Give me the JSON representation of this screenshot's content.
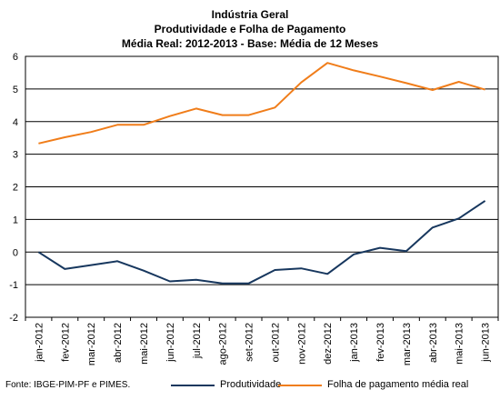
{
  "chart_data": {
    "type": "line",
    "title": "Indústria Geral",
    "subtitle": "Produtividade e Folha de Pagamento",
    "subtitle2": "Média Real: 2012-2013 - Base: Média de 12 Meses",
    "categories": [
      "jan-2012",
      "fev-2012",
      "mar-2012",
      "abr-2012",
      "mai-2012",
      "jun-2012",
      "jul-2012",
      "ago-2012",
      "set-2012",
      "out-2012",
      "nov-2012",
      "dez-2012",
      "jan-2013",
      "fev-2013",
      "mar-2013",
      "abr-2013",
      "mai-2013",
      "jun-2013"
    ],
    "series": [
      {
        "name": "Produtividade",
        "color": "#17375E",
        "values": [
          0.0,
          -0.52,
          -0.4,
          -0.28,
          -0.57,
          -0.9,
          -0.85,
          -0.96,
          -0.96,
          -0.55,
          -0.5,
          -0.67,
          -0.07,
          0.13,
          0.03,
          0.75,
          1.03,
          1.57
        ]
      },
      {
        "name": "Folha de pagamento média real",
        "color": "#F07D1A",
        "values": [
          3.33,
          3.52,
          3.68,
          3.9,
          3.9,
          4.17,
          4.4,
          4.2,
          4.2,
          4.43,
          5.2,
          5.8,
          5.57,
          5.38,
          5.18,
          4.97,
          5.22,
          4.98
        ]
      }
    ],
    "yticks": [
      6,
      5,
      4,
      3,
      2,
      1,
      0,
      -1,
      -2
    ],
    "ylim": [
      -2,
      6
    ],
    "grid": true,
    "legend": "bottom"
  },
  "source": "Fonte: IBGE-PIM-PF e PIMES."
}
